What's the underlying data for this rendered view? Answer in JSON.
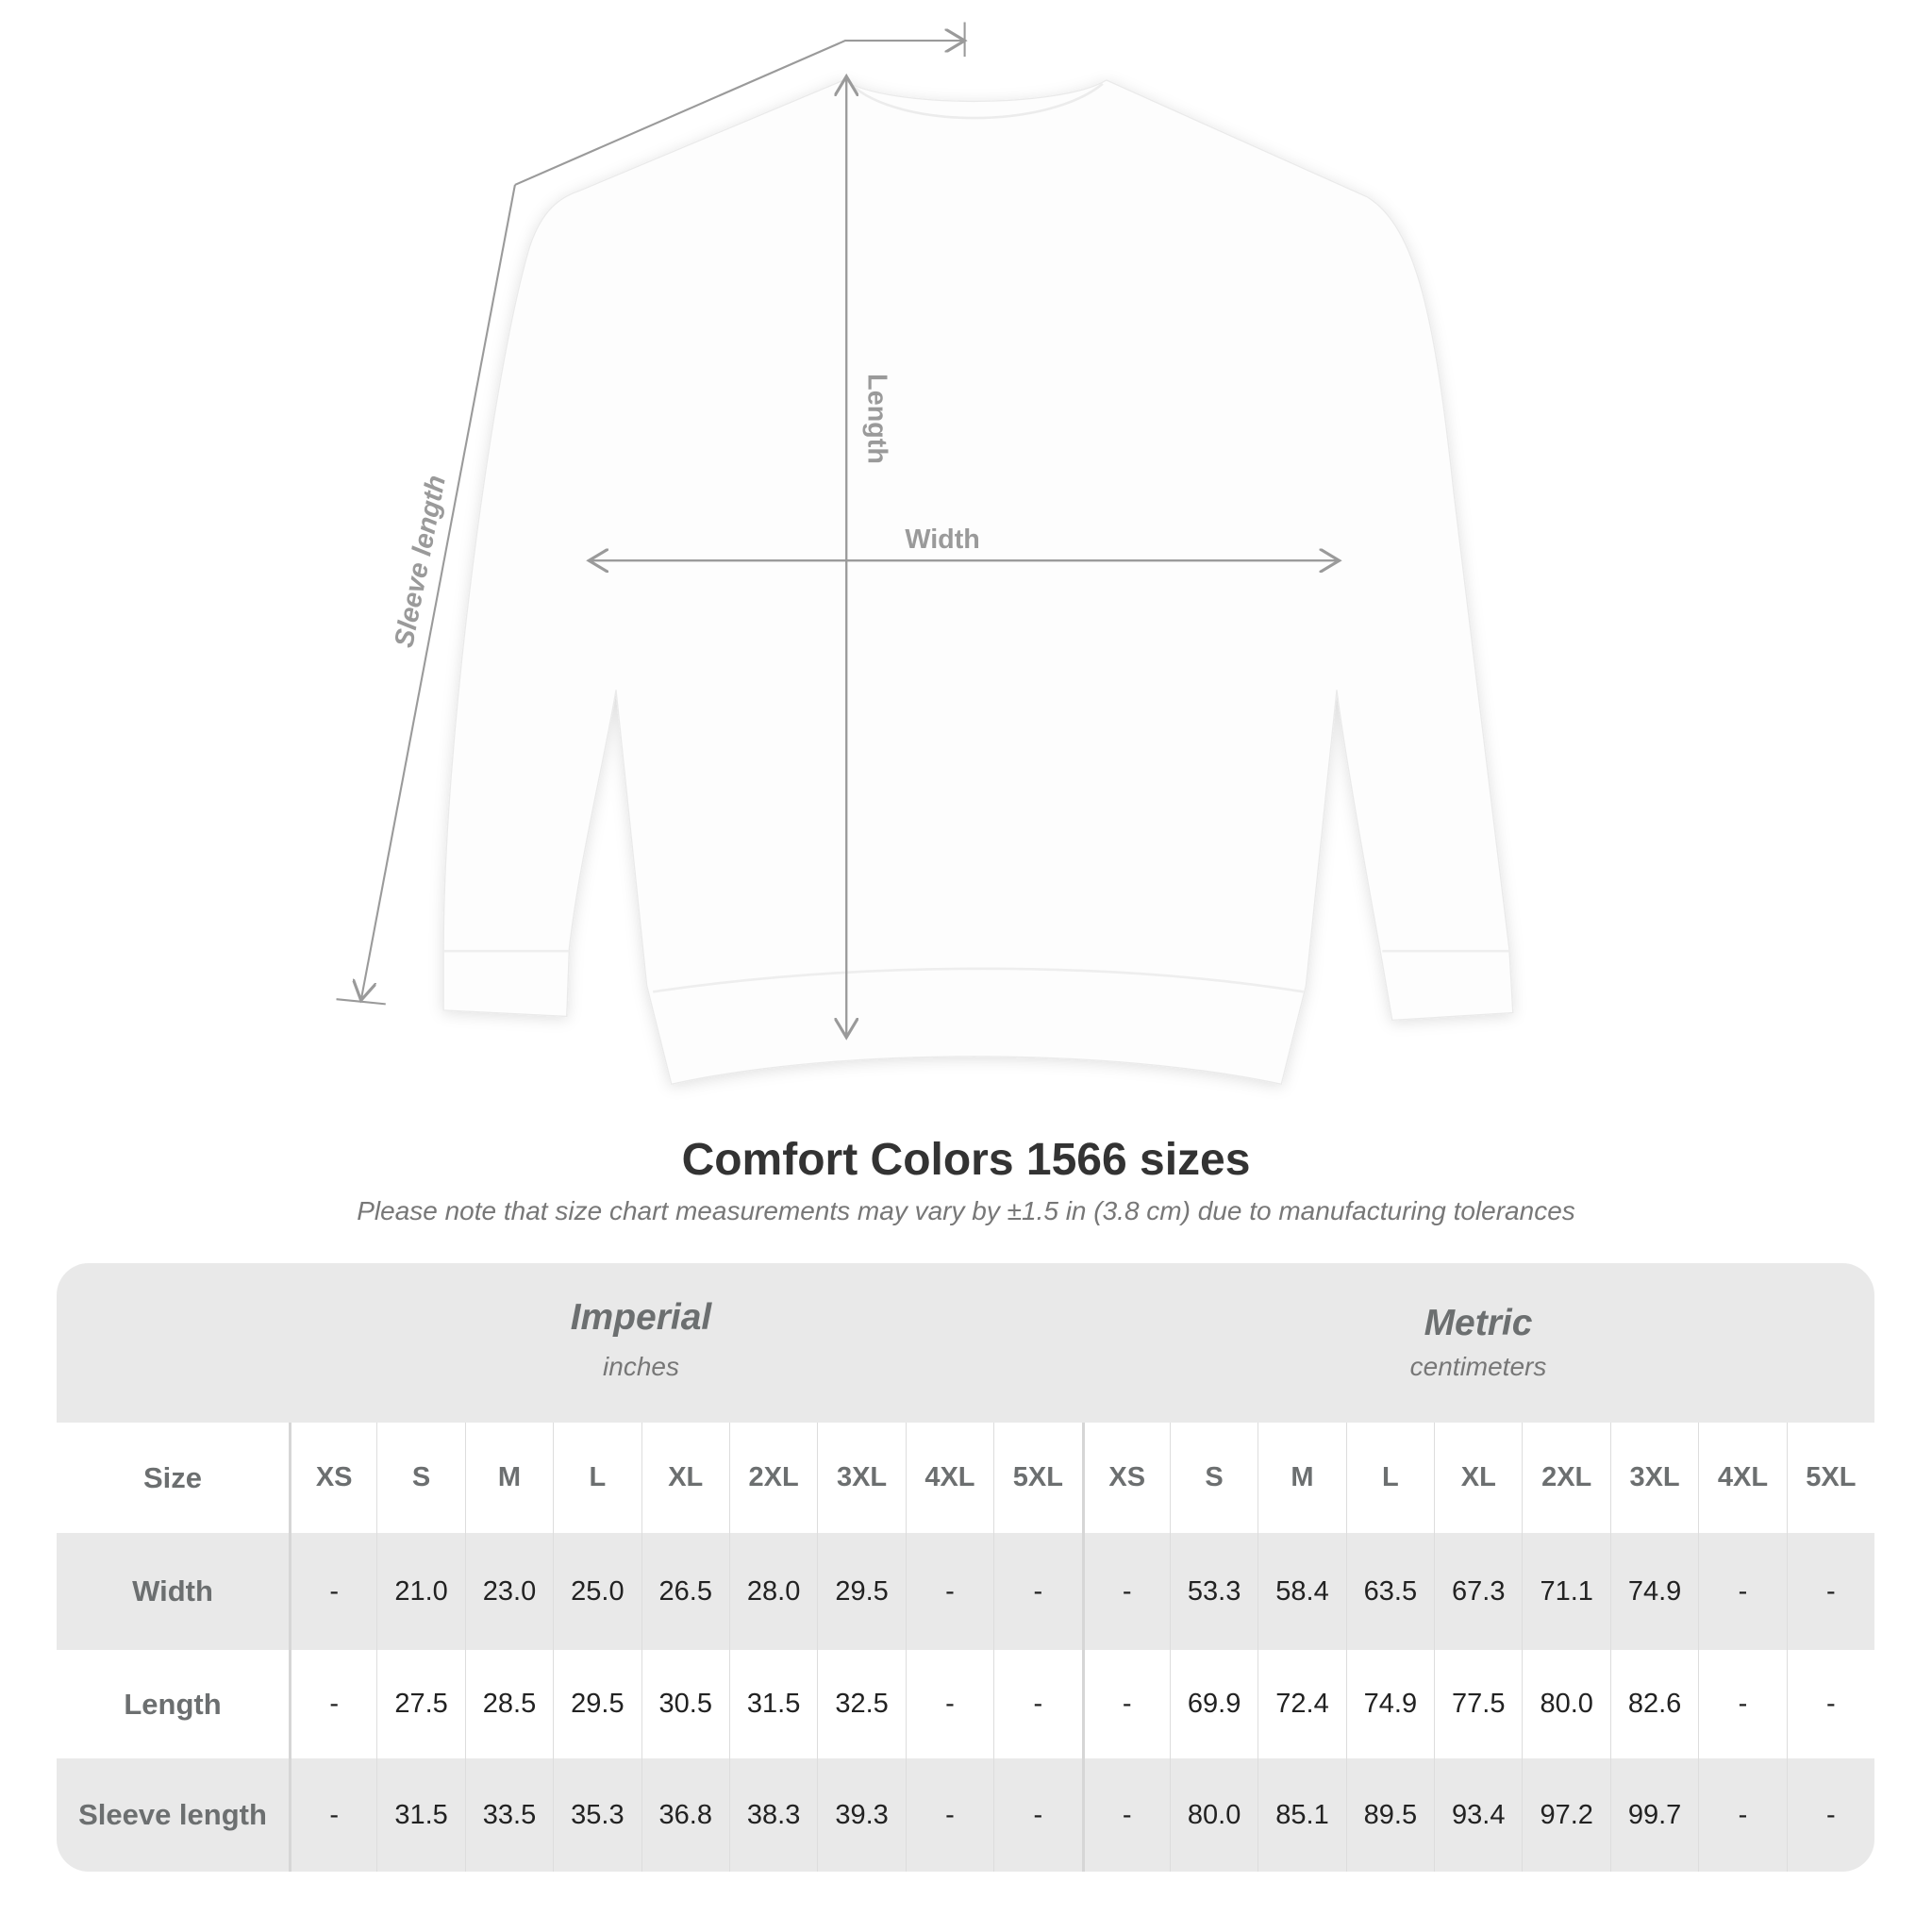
{
  "diagram": {
    "labels": {
      "width": "Width",
      "length": "Length",
      "sleeve": "Sleeve length"
    },
    "line_color": "#9a9a9a"
  },
  "title": "Comfort Colors 1566 sizes",
  "subtitle": "Please note that size chart measurements may vary by ±1.5 in (3.8 cm) due to manufacturing tolerances",
  "table": {
    "imperial": {
      "name": "Imperial",
      "unit": "inches"
    },
    "metric": {
      "name": "Metric",
      "unit": "centimeters"
    },
    "size_label": "Size",
    "sizes": [
      "XS",
      "S",
      "M",
      "L",
      "XL",
      "2XL",
      "3XL",
      "4XL",
      "5XL"
    ],
    "rows": [
      {
        "label": "Width",
        "imperial": [
          "-",
          "21.0",
          "23.0",
          "25.0",
          "26.5",
          "28.0",
          "29.5",
          "-",
          "-"
        ],
        "metric": [
          "-",
          "53.3",
          "58.4",
          "63.5",
          "67.3",
          "71.1",
          "74.9",
          "-",
          "-"
        ]
      },
      {
        "label": "Length",
        "imperial": [
          "-",
          "27.5",
          "28.5",
          "29.5",
          "30.5",
          "31.5",
          "32.5",
          "-",
          "-"
        ],
        "metric": [
          "-",
          "69.9",
          "72.4",
          "74.9",
          "77.5",
          "80.0",
          "82.6",
          "-",
          "-"
        ]
      },
      {
        "label": "Sleeve length",
        "imperial": [
          "-",
          "31.5",
          "33.5",
          "35.3",
          "36.8",
          "38.3",
          "39.3",
          "-",
          "-"
        ],
        "metric": [
          "-",
          "80.0",
          "85.1",
          "89.5",
          "93.4",
          "97.2",
          "99.7",
          "-",
          "-"
        ]
      }
    ]
  }
}
